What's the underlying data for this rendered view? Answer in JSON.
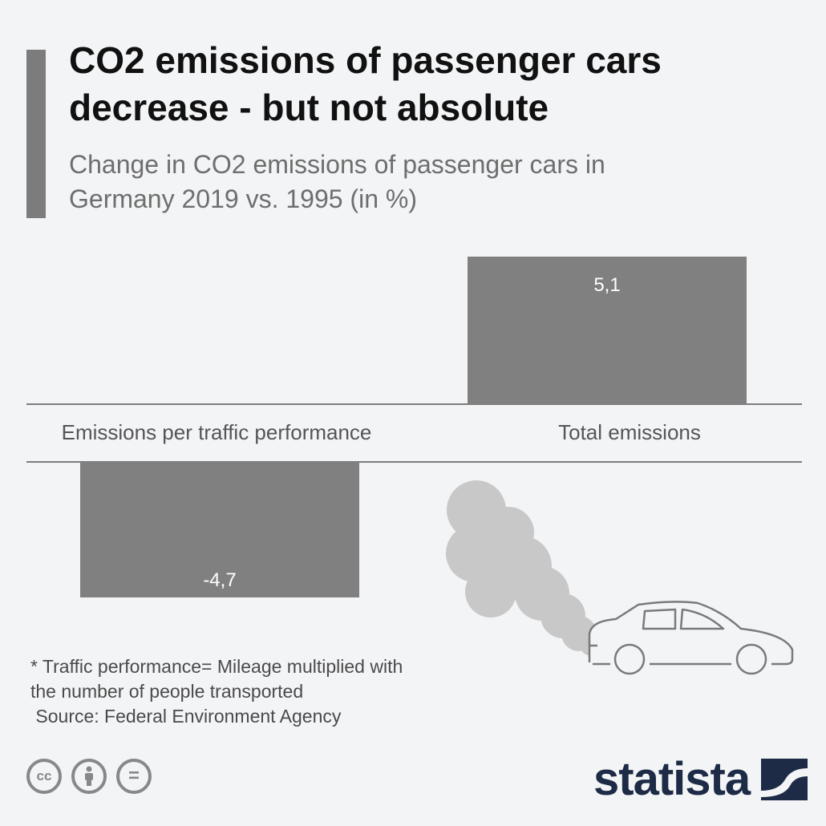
{
  "header": {
    "title_line1": "CO2 emissions of passenger cars",
    "title_line2": "decrease - but not absolute",
    "subtitle_line1": "Change in CO2 emissions of passenger cars in",
    "subtitle_line2": "Germany 2019 vs. 1995 (in %)"
  },
  "chart_data": {
    "type": "bar",
    "title": "CO2 emissions of passenger cars decrease - but not absolute",
    "subtitle": "Change in CO2 emissions of passenger cars in Germany 2019 vs. 1995 (in %)",
    "categories": [
      "Emissions per traffic performance",
      "Total emissions"
    ],
    "values": [
      -4.7,
      5.1
    ],
    "value_labels": [
      "-4,7",
      "5,1"
    ],
    "ylim": [
      -4.7,
      5.1
    ],
    "grid": false,
    "bar_color": "#808080",
    "value_label_color": "#ffffff"
  },
  "footnote": {
    "line1": "* Traffic performance= Mileage multiplied with",
    "line2": "the number of people transported",
    "line3": " Source: Federal Environment Agency"
  },
  "license_icons": [
    "cc-icon",
    "by-person-icon",
    "nd-equals-icon"
  ],
  "license_symbols": {
    "cc": "cc",
    "nd": "="
  },
  "brand": {
    "name": "statista",
    "color": "#1d2b46"
  },
  "illustration": {
    "name": "car-with-exhaust-smoke",
    "smoke_color": "#c8c8c8"
  }
}
